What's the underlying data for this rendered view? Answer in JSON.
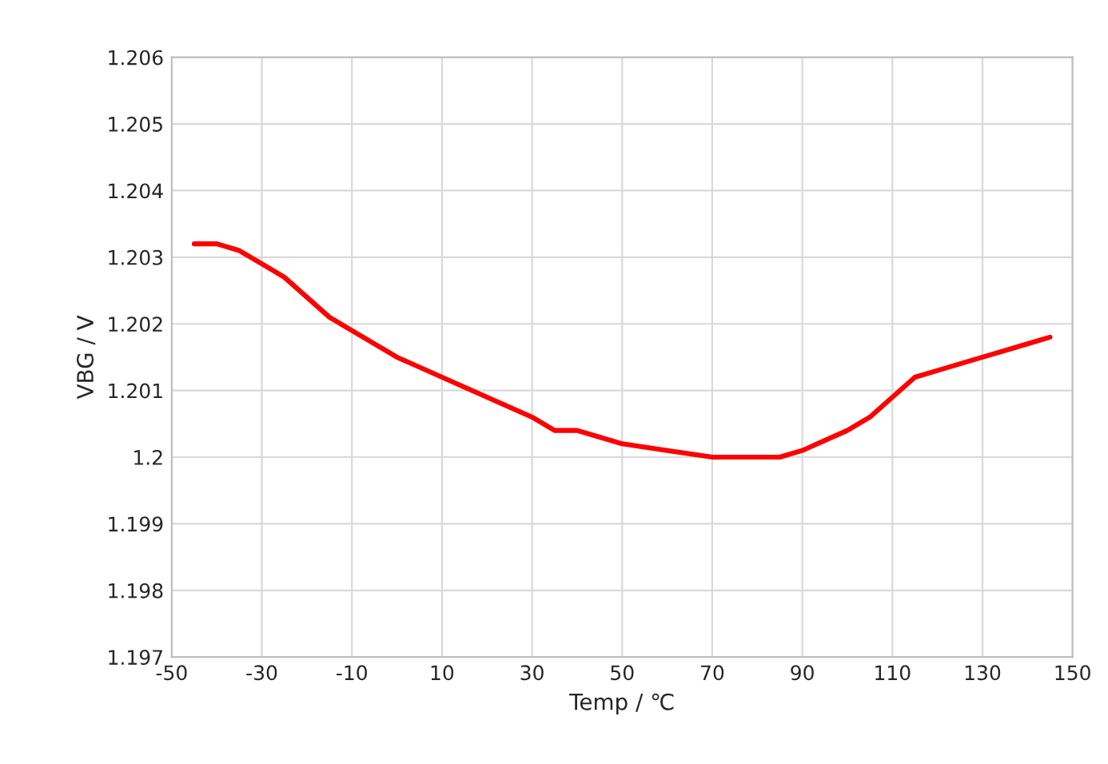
{
  "chart_data": {
    "type": "line",
    "xlabel": "Temp / ℃",
    "ylabel": "VBG / V",
    "x": [
      -45,
      -40,
      -35,
      -30,
      -25,
      -20,
      -15,
      -10,
      0,
      10,
      20,
      30,
      35,
      40,
      45,
      50,
      60,
      70,
      80,
      85,
      90,
      100,
      105,
      110,
      115,
      120,
      130,
      140,
      145
    ],
    "series": [
      {
        "color": "#ff0000",
        "values": [
          1.2032,
          1.2032,
          1.2031,
          1.2029,
          1.2027,
          1.2024,
          1.2021,
          1.2019,
          1.2015,
          1.2012,
          1.2009,
          1.2006,
          1.2004,
          1.2004,
          1.2003,
          1.2002,
          1.2001,
          1.2,
          1.2,
          1.2,
          1.2001,
          1.2004,
          1.2006,
          1.2009,
          1.2012,
          1.2013,
          1.2015,
          1.2017,
          1.2018
        ]
      }
    ],
    "xlim": [
      -50,
      150
    ],
    "xticks": [
      -50,
      -30,
      -10,
      10,
      30,
      50,
      70,
      90,
      110,
      130,
      150
    ],
    "ylim": [
      1.197,
      1.206
    ],
    "yticks": [
      1.197,
      1.198,
      1.199,
      1.2,
      1.201,
      1.202,
      1.203,
      1.204,
      1.205,
      1.206
    ],
    "grid": true,
    "line_style": "solid"
  }
}
